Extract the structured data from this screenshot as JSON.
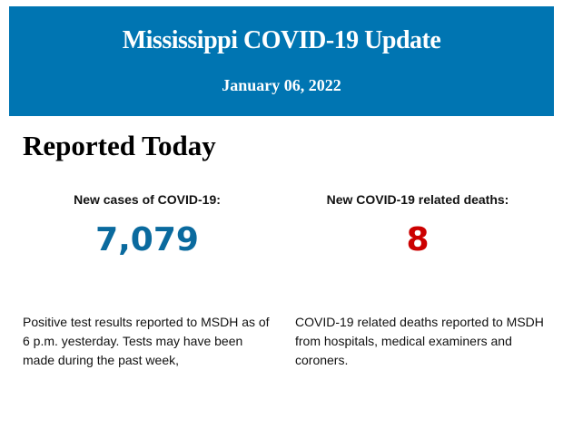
{
  "header": {
    "title": "Mississippi COVID-19 Update",
    "date": "January 06, 2022",
    "background_color": "#0075b2"
  },
  "section": {
    "heading": "Reported Today"
  },
  "stats": [
    {
      "label": "New cases of COVID-19:",
      "value": "7,079",
      "color": "#0a6a9e",
      "description": "Positive test results reported to MSDH as of 6 p.m. yesterday. Tests may have been made during the past week,"
    },
    {
      "label": "New COVID-19 related deaths:",
      "value": "8",
      "color": "#cc0000",
      "description": "COVID-19 related deaths reported to MSDH from hospitals, medical examiners and coroners."
    }
  ]
}
